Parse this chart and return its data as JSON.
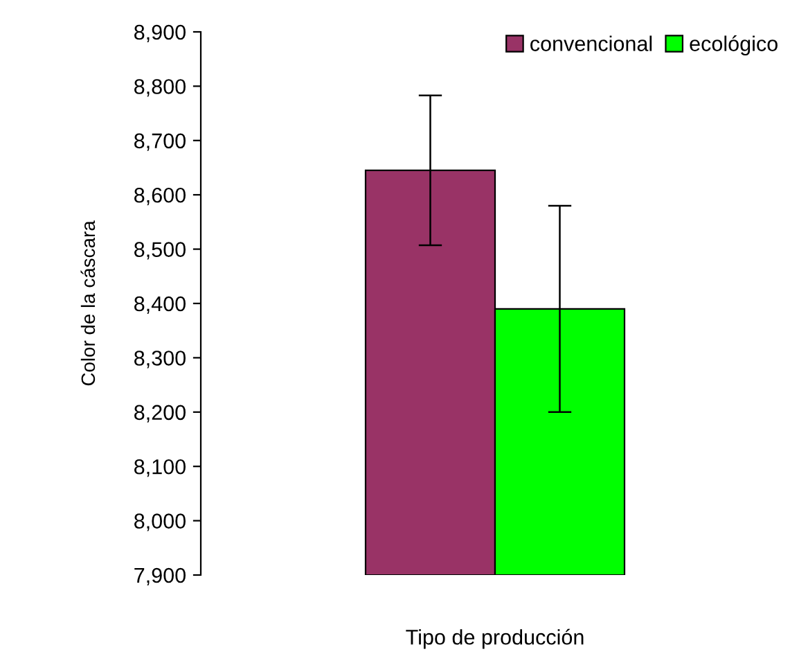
{
  "chart_data": {
    "type": "bar",
    "xlabel": "Tipo de producción",
    "ylabel": "Color de la cáscara",
    "categories": [
      null
    ],
    "series": [
      {
        "name": "convencional",
        "color": "#993366",
        "values": [
          8645
        ],
        "errors": [
          138
        ]
      },
      {
        "name": "ecológico",
        "color": "#00ff00",
        "values": [
          8390
        ],
        "errors": [
          190
        ]
      }
    ],
    "ylim": [
      7900,
      8900
    ],
    "yticks": [
      {
        "value": 7900,
        "label": "7,900"
      },
      {
        "value": 8000,
        "label": "8,000"
      },
      {
        "value": 8100,
        "label": "8,100"
      },
      {
        "value": 8200,
        "label": "8,200"
      },
      {
        "value": 8300,
        "label": "8,300"
      },
      {
        "value": 8400,
        "label": "8,400"
      },
      {
        "value": 8500,
        "label": "8,500"
      },
      {
        "value": 8600,
        "label": "8,600"
      },
      {
        "value": 8700,
        "label": "8,700"
      },
      {
        "value": 8800,
        "label": "8,800"
      },
      {
        "value": 8900,
        "label": "8,900"
      }
    ],
    "legend": "top right",
    "grid": false,
    "tick_labels": "y"
  }
}
